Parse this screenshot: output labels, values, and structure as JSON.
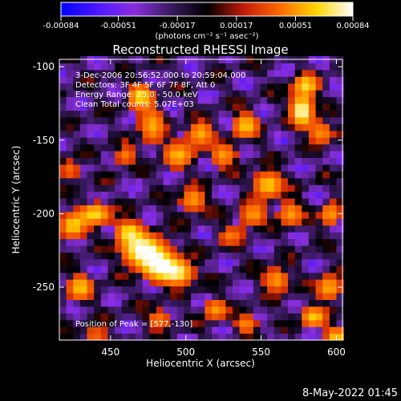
{
  "colors": {
    "background": "#000000",
    "foreground": "#ffffff",
    "colormap": [
      "#0000ff",
      "#4b18ff",
      "#8a2ee0",
      "#3a1a60",
      "#000000",
      "#c01a08",
      "#ff6a00",
      "#ffd400",
      "#ffffff"
    ]
  },
  "colorbar": {
    "ticks": [
      "-0.00084",
      "-0.00051",
      "-0.00017",
      "0.00017",
      "0.00051",
      "0.00084"
    ],
    "unit_label": "(photons cm⁻² s⁻¹ asec⁻²)",
    "vmin": -0.00084,
    "vmax": 0.00084
  },
  "chart_data": {
    "type": "heatmap",
    "title": "Reconstructed RHESSI Image",
    "xlabel": "Heliocentric X (arcsec)",
    "ylabel": "Heliocentric Y (arcsec)",
    "xlim": [
      416,
      604
    ],
    "ylim": [
      -286,
      -95
    ],
    "x_ticks": [
      450,
      500,
      550,
      600
    ],
    "y_ticks": [
      -100,
      -150,
      -200,
      -250
    ],
    "x_tick_labels": [
      "450",
      "500",
      "550",
      "600"
    ],
    "y_tick_labels": [
      "-100",
      "-150",
      "-200",
      "-250"
    ],
    "info_lines": [
      "3-Dec-2006 20:56:52.000 to 20:59:04.000",
      "Detectors: 3F 4F 5F 6F 7F 8F, Att 0",
      "Energy Range: 25.0 - 50.0 keV",
      "Clean     Total counts: 5.07E+03"
    ],
    "peak_label": "Position of Peak = [577,-130]",
    "peak_position": [
      577,
      -130
    ],
    "sources": [
      {
        "x": 471,
        "y": -224,
        "peak": 1.0,
        "sigma_x": 9,
        "sigma_y": 7
      },
      {
        "x": 482,
        "y": -235,
        "peak": 0.9,
        "sigma_x": 8,
        "sigma_y": 7
      },
      {
        "x": 495,
        "y": -240,
        "peak": 0.75,
        "sigma_x": 7,
        "sigma_y": 6
      },
      {
        "x": 462,
        "y": -212,
        "peak": 0.7,
        "sigma_x": 6,
        "sigma_y": 5
      },
      {
        "x": 440,
        "y": -200,
        "peak": 0.75,
        "sigma_x": 7,
        "sigma_y": 5
      },
      {
        "x": 425,
        "y": -208,
        "peak": 0.7,
        "sigma_x": 6,
        "sigma_y": 6
      },
      {
        "x": 430,
        "y": -250,
        "peak": 0.7,
        "sigma_x": 6,
        "sigma_y": 6
      },
      {
        "x": 470,
        "y": -120,
        "peak": 0.75,
        "sigma_x": 6,
        "sigma_y": 6
      },
      {
        "x": 478,
        "y": -140,
        "peak": 0.6,
        "sigma_x": 6,
        "sigma_y": 8
      },
      {
        "x": 495,
        "y": -160,
        "peak": 0.65,
        "sigma_x": 7,
        "sigma_y": 6
      },
      {
        "x": 510,
        "y": -145,
        "peak": 0.6,
        "sigma_x": 6,
        "sigma_y": 6
      },
      {
        "x": 525,
        "y": -160,
        "peak": 0.55,
        "sigma_x": 6,
        "sigma_y": 6
      },
      {
        "x": 540,
        "y": -140,
        "peak": 0.7,
        "sigma_x": 6,
        "sigma_y": 6
      },
      {
        "x": 555,
        "y": -180,
        "peak": 0.7,
        "sigma_x": 7,
        "sigma_y": 6
      },
      {
        "x": 545,
        "y": -200,
        "peak": 0.55,
        "sigma_x": 6,
        "sigma_y": 6
      },
      {
        "x": 570,
        "y": -200,
        "peak": 0.55,
        "sigma_x": 6,
        "sigma_y": 6
      },
      {
        "x": 577,
        "y": -130,
        "peak": 1.0,
        "sigma_x": 5,
        "sigma_y": 7
      },
      {
        "x": 580,
        "y": -112,
        "peak": 0.75,
        "sigma_x": 6,
        "sigma_y": 5
      },
      {
        "x": 590,
        "y": -145,
        "peak": 0.5,
        "sigma_x": 6,
        "sigma_y": 6
      },
      {
        "x": 596,
        "y": -200,
        "peak": 0.55,
        "sigma_x": 5,
        "sigma_y": 6
      },
      {
        "x": 505,
        "y": -190,
        "peak": 0.55,
        "sigma_x": 6,
        "sigma_y": 6
      },
      {
        "x": 520,
        "y": -265,
        "peak": 0.55,
        "sigma_x": 6,
        "sigma_y": 5
      },
      {
        "x": 540,
        "y": -275,
        "peak": 0.5,
        "sigma_x": 5,
        "sigma_y": 5
      },
      {
        "x": 560,
        "y": -245,
        "peak": 0.55,
        "sigma_x": 6,
        "sigma_y": 6
      },
      {
        "x": 595,
        "y": -250,
        "peak": 0.6,
        "sigma_x": 6,
        "sigma_y": 6
      },
      {
        "x": 585,
        "y": -270,
        "peak": 0.7,
        "sigma_x": 6,
        "sigma_y": 5
      },
      {
        "x": 600,
        "y": -283,
        "peak": 0.7,
        "sigma_x": 5,
        "sigma_y": 4
      },
      {
        "x": 482,
        "y": -272,
        "peak": 0.45,
        "sigma_x": 6,
        "sigma_y": 5
      },
      {
        "x": 440,
        "y": -282,
        "peak": 0.4,
        "sigma_x": 6,
        "sigma_y": 4
      },
      {
        "x": 460,
        "y": -160,
        "peak": 0.45,
        "sigma_x": 5,
        "sigma_y": 5
      },
      {
        "x": 423,
        "y": -170,
        "peak": 0.4,
        "sigma_x": 5,
        "sigma_y": 5
      },
      {
        "x": 530,
        "y": -215,
        "peak": 0.45,
        "sigma_x": 6,
        "sigma_y": 5
      }
    ]
  },
  "footer": {
    "timestamp": "8-May-2022 01:45"
  }
}
